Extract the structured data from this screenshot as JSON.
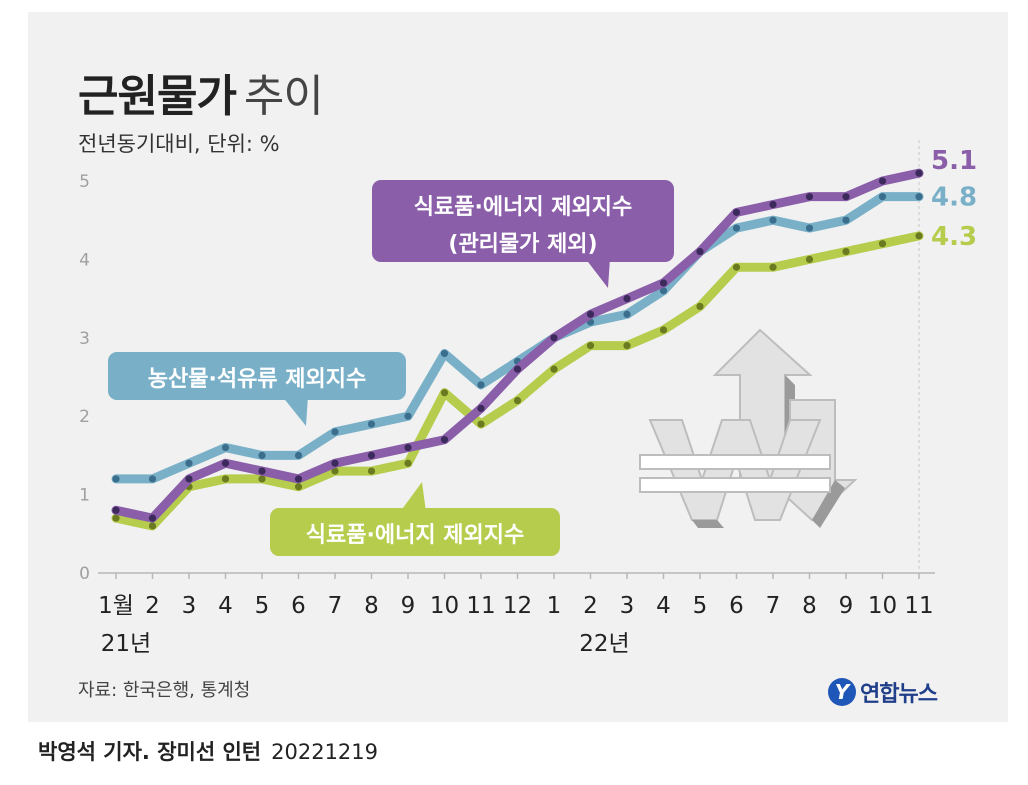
{
  "header": {
    "title_bold": "근원물가",
    "title_light": "추이",
    "subtitle": "전년동기대비, 단위: %"
  },
  "footer": {
    "source": "자료: 한국은행, 통계청",
    "logo_mark": "Y",
    "logo_text": "연합뉴스",
    "credit_name": "박영석 기자. 장미선 인턴",
    "credit_date": "20221219"
  },
  "colors": {
    "purple": "#8a5ea8",
    "blue": "#79b0c8",
    "green": "#b5cc4c",
    "purple_dot": "#3d2a5c",
    "blue_dot": "#3a6e8c",
    "green_dot": "#6a7a20"
  },
  "icon": "won-sign-up-down-arrows-icon",
  "chart_data": {
    "type": "line",
    "ylim": [
      0,
      5
    ],
    "yticks": [
      "0",
      "1",
      "2",
      "3",
      "4",
      "5"
    ],
    "categories": [
      "1월",
      "2",
      "3",
      "4",
      "5",
      "6",
      "7",
      "8",
      "9",
      "10",
      "11",
      "12",
      "1",
      "2",
      "3",
      "4",
      "5",
      "6",
      "7",
      "8",
      "9",
      "10",
      "11"
    ],
    "year_labels": [
      {
        "index": 0,
        "label": "21년"
      },
      {
        "index": 13,
        "label": "22년"
      }
    ],
    "series": [
      {
        "name": "식료품·에너지 제외지수 (관리물가 제외)",
        "callout": [
          "식료품·에너지 제외지수",
          "(관리물가 제외)"
        ],
        "end_label": "5.1",
        "color_key": "purple",
        "values": [
          0.8,
          0.7,
          1.2,
          1.4,
          1.3,
          1.2,
          1.4,
          1.5,
          1.6,
          1.7,
          2.1,
          2.6,
          3.0,
          3.3,
          3.5,
          3.7,
          4.1,
          4.6,
          4.7,
          4.8,
          4.8,
          5.0,
          5.1
        ]
      },
      {
        "name": "농산물·석유류 제외지수",
        "callout": [
          "농산물·석유류 제외지수"
        ],
        "end_label": "4.8",
        "color_key": "blue",
        "values": [
          1.2,
          1.2,
          1.4,
          1.6,
          1.5,
          1.5,
          1.8,
          1.9,
          2.0,
          2.8,
          2.4,
          2.7,
          3.0,
          3.2,
          3.3,
          3.6,
          4.1,
          4.4,
          4.5,
          4.4,
          4.5,
          4.8,
          4.8
        ]
      },
      {
        "name": "식료품·에너지 제외지수",
        "callout": [
          "식료품·에너지 제외지수"
        ],
        "end_label": "4.3",
        "color_key": "green",
        "values": [
          0.7,
          0.6,
          1.1,
          1.2,
          1.2,
          1.1,
          1.3,
          1.3,
          1.4,
          2.3,
          1.9,
          2.2,
          2.6,
          2.9,
          2.9,
          3.1,
          3.4,
          3.9,
          3.9,
          4.0,
          4.1,
          4.2,
          4.3
        ]
      }
    ]
  }
}
